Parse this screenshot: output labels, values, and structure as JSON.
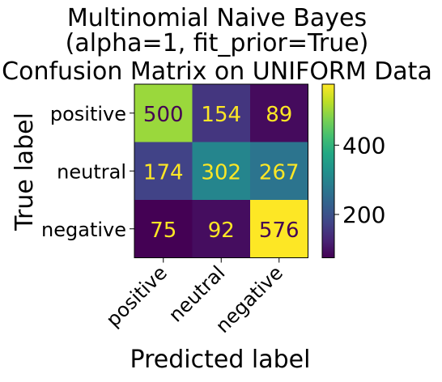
{
  "chart_data": {
    "type": "heatmap",
    "title_lines": [
      "Multinomial Naive Bayes",
      "(alpha=1, fit_prior=True)",
      "Confusion Matrix on UNIFORM Data"
    ],
    "xlabel": "Predicted label",
    "ylabel": "True label",
    "row_labels": [
      "positive",
      "neutral",
      "negative"
    ],
    "col_labels": [
      "positive",
      "neutral",
      "negative"
    ],
    "matrix": [
      [
        500,
        154,
        89
      ],
      [
        174,
        302,
        267
      ],
      [
        75,
        92,
        576
      ]
    ],
    "colormap": "viridis",
    "value_range": [
      75,
      576
    ],
    "colorbar_ticks": [
      200,
      400
    ],
    "colorbar_tick_labels": [
      "200",
      "400"
    ],
    "text_colors": {
      "on_dark": "#fde725",
      "on_light": "#440154"
    }
  }
}
